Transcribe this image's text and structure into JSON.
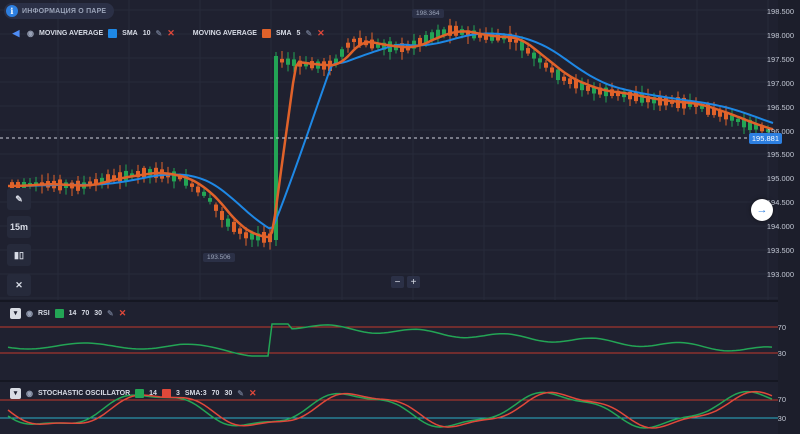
{
  "info": {
    "label": "ИНФОРМАЦИЯ О ПАРЕ",
    "icon": "info-icon"
  },
  "indicators": {
    "ma1": {
      "name": "MOVING AVERAGE",
      "type": "SMA",
      "period": "10",
      "color": "#1e88e5"
    },
    "ma2": {
      "name": "MOVING AVERAGE",
      "type": "SMA",
      "period": "5",
      "color": "#e0622a"
    },
    "rsi": {
      "name": "RSI",
      "period": "14",
      "upper": "70",
      "lower": "30",
      "color": "#23a555"
    },
    "stoch": {
      "name": "STOCHASTIC OSCILLATOR",
      "k": "14",
      "d": "3",
      "sma": "SMA:3",
      "upper": "70",
      "lower": "30",
      "k_color": "#23a555",
      "d_color": "#e0483a"
    }
  },
  "toolbar": {
    "timeframe": "15m"
  },
  "price_axis": [
    "198.500",
    "198.000",
    "197.500",
    "197.000",
    "196.500",
    "196.000",
    "195.500",
    "195.000",
    "194.500",
    "194.000",
    "193.500",
    "193.000"
  ],
  "rsi_axis": [
    "70",
    "30"
  ],
  "stoch_axis": [
    "70",
    "30"
  ],
  "current_price": "195.881",
  "high_label": "198.364",
  "low_label": "193.506",
  "zoom": {
    "minus": "−",
    "plus": "+"
  },
  "colors": {
    "bg": "#1f2130",
    "up": "#23a555",
    "down": "#e0622a",
    "accent": "#2d7fe0",
    "level": "#c0392b"
  }
}
